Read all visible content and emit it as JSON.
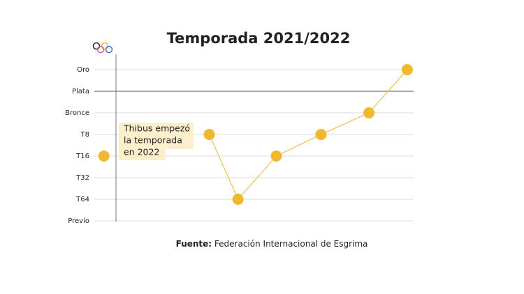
{
  "chart_data": {
    "type": "line",
    "title": "Temporada 2021/2022",
    "x": [
      3,
      null,
      36,
      45,
      57,
      71,
      86,
      98
    ],
    "values": [
      3,
      null,
      4,
      1,
      3,
      4,
      5,
      7
    ],
    "xlim": [
      0,
      100
    ],
    "ylim": [
      0,
      7
    ],
    "yticks": [
      {
        "value": 0,
        "label": "Previo"
      },
      {
        "value": 1,
        "label": "T64"
      },
      {
        "value": 2,
        "label": "T32"
      },
      {
        "value": 3,
        "label": "T16"
      },
      {
        "value": 4,
        "label": "T8"
      },
      {
        "value": 5,
        "label": "Bronce"
      },
      {
        "value": 6,
        "label": "Plata"
      },
      {
        "value": 7,
        "label": "Oro"
      }
    ],
    "grid": true,
    "reference_y": 6,
    "color": "#f0b92d",
    "annotation": [
      "Thibus empezó",
      "la temporada",
      "en 2022"
    ],
    "source_label": "Fuente:",
    "source": "Federación Internacional de Esgrima"
  }
}
